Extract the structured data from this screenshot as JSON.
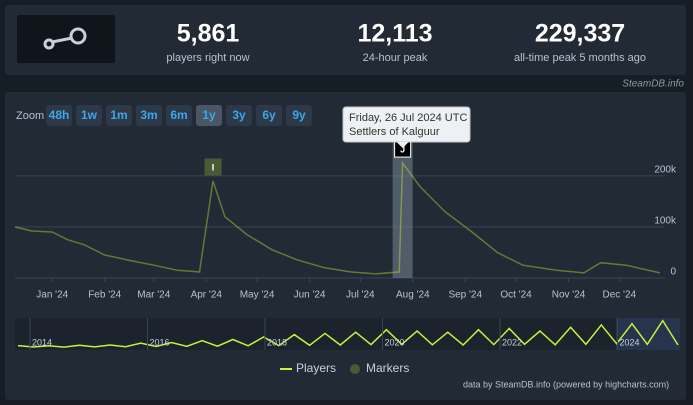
{
  "stats": [
    {
      "value": "5,861",
      "label": "players right now"
    },
    {
      "value": "12,113",
      "label": "24-hour peak"
    },
    {
      "value": "229,337",
      "label": "all-time peak 5 months ago"
    }
  ],
  "source": "SteamDB.info",
  "zoom": {
    "label": "Zoom",
    "buttons": [
      "48h",
      "1w",
      "1m",
      "3m",
      "6m",
      "1y",
      "3y",
      "6y",
      "9y"
    ],
    "active": "1y"
  },
  "tooltip": {
    "date": "Friday, 26 Jul 2024 UTC",
    "text": "Settlers of Kalguur"
  },
  "credits": "data by SteamDB.info (powered by highcharts.com)",
  "chart_data": {
    "type": "line",
    "x": [
      "2023-12-10",
      "2023-12-20",
      "2024-01-01",
      "2024-01-10",
      "2024-01-20",
      "2024-02-01",
      "2024-02-15",
      "2024-03-01",
      "2024-03-15",
      "2024-03-28",
      "2024-04-05",
      "2024-04-12",
      "2024-04-25",
      "2024-05-10",
      "2024-05-25",
      "2024-06-10",
      "2024-06-25",
      "2024-07-10",
      "2024-07-24",
      "2024-07-26",
      "2024-08-05",
      "2024-08-20",
      "2024-09-05",
      "2024-09-20",
      "2024-10-05",
      "2024-10-25",
      "2024-11-10",
      "2024-11-20",
      "2024-12-05",
      "2024-12-25"
    ],
    "series": [
      {
        "name": "Players",
        "color": "#c8f03c",
        "values": [
          100000,
          92000,
          90000,
          75000,
          65000,
          45000,
          35000,
          25000,
          15000,
          12000,
          190000,
          120000,
          85000,
          55000,
          35000,
          20000,
          12000,
          8000,
          12000,
          225000,
          180000,
          130000,
          90000,
          50000,
          25000,
          15000,
          10000,
          30000,
          25000,
          10000
        ]
      }
    ],
    "markers": {
      "name": "Markers",
      "color": "#4a5a35",
      "items": [
        {
          "label": "I",
          "x": "2024-04-05"
        },
        {
          "label": "J",
          "x": "2024-07-26"
        }
      ]
    },
    "xlim": [
      "2023-12-10",
      "2024-12-28"
    ],
    "xticks": [
      {
        "value": "2024-01-01",
        "label": "Jan '24"
      },
      {
        "value": "2024-02-01",
        "label": "Feb '24"
      },
      {
        "value": "2024-03-01",
        "label": "Mar '24"
      },
      {
        "value": "2024-04-01",
        "label": "Apr '24"
      },
      {
        "value": "2024-05-01",
        "label": "May '24"
      },
      {
        "value": "2024-06-01",
        "label": "Jun '24"
      },
      {
        "value": "2024-07-01",
        "label": "Jul '24"
      },
      {
        "value": "2024-08-01",
        "label": "Aug '24"
      },
      {
        "value": "2024-09-01",
        "label": "Sep '24"
      },
      {
        "value": "2024-10-01",
        "label": "Oct '24"
      },
      {
        "value": "2024-11-01",
        "label": "Nov '24"
      },
      {
        "value": "2024-12-01",
        "label": "Dec '24"
      }
    ],
    "ylim": [
      0,
      280000
    ],
    "yticks": [
      {
        "value": 0,
        "label": "0"
      },
      {
        "value": 100000,
        "label": "100k"
      },
      {
        "value": 200000,
        "label": "200k"
      }
    ],
    "grid": true,
    "navigator": {
      "labels": [
        "2014",
        "2016",
        "2018",
        "2020",
        "2022",
        "2024"
      ],
      "ylim": [
        0,
        230000
      ],
      "values": [
        20000,
        8000,
        18000,
        7000,
        22000,
        9000,
        25000,
        10000,
        40000,
        12000,
        45000,
        14000,
        60000,
        15000,
        70000,
        18000,
        90000,
        20000,
        110000,
        22000,
        120000,
        25000,
        130000,
        28000,
        150000,
        30000,
        140000,
        26000,
        130000,
        25000,
        150000,
        28000,
        160000,
        30000,
        140000,
        26000,
        170000,
        30000,
        190000,
        35000,
        200000,
        30000,
        225000,
        25000
      ]
    }
  }
}
